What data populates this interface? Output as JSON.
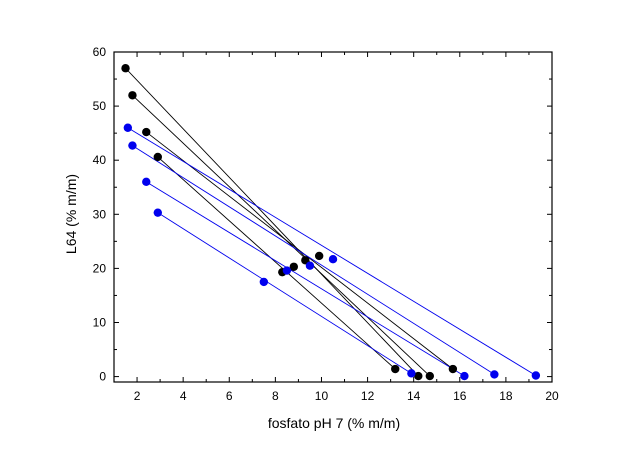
{
  "chart_data": {
    "type": "scatter",
    "xlabel": "fosfato pH 7 (% m/m)",
    "ylabel": "L64 (% m/m)",
    "xlim": [
      1,
      20
    ],
    "ylim": [
      -1,
      60
    ],
    "xticks": [
      2,
      4,
      6,
      8,
      10,
      12,
      14,
      16,
      18,
      20
    ],
    "yticks": [
      0,
      10,
      20,
      30,
      40,
      50,
      60
    ],
    "xtick_labels": [
      "2",
      "4",
      "6",
      "8",
      "10",
      "12",
      "14",
      "16",
      "18",
      "20"
    ],
    "ytick_labels": [
      "0",
      "10",
      "20",
      "30",
      "40",
      "50",
      "60"
    ],
    "grid": false,
    "series": [
      {
        "color": "#000000",
        "tie_lines": [
          {
            "top": [
              1.5,
              57.0
            ],
            "mid": [
              9.9,
              22.3
            ],
            "bottom": [
              14.2,
              0.1
            ]
          },
          {
            "top": [
              1.8,
              52.0
            ],
            "mid": [
              9.3,
              21.5
            ],
            "bottom": [
              14.7,
              0.1
            ]
          },
          {
            "top": [
              2.4,
              45.2
            ],
            "mid": [
              8.8,
              20.3
            ],
            "bottom": [
              15.7,
              1.4
            ]
          },
          {
            "top": [
              2.9,
              40.6
            ],
            "mid": [
              8.3,
              19.3
            ],
            "bottom": [
              13.2,
              1.4
            ]
          }
        ]
      },
      {
        "color": "#0000ee",
        "tie_lines": [
          {
            "top": [
              1.6,
              46.0
            ],
            "mid": [
              10.5,
              21.7
            ],
            "bottom": [
              19.3,
              0.2
            ]
          },
          {
            "top": [
              1.8,
              42.7
            ],
            "mid": [
              9.5,
              20.5
            ],
            "bottom": [
              17.5,
              0.4
            ]
          },
          {
            "top": [
              2.4,
              36.0
            ],
            "mid": [
              8.5,
              19.6
            ],
            "bottom": [
              16.2,
              0.1
            ]
          },
          {
            "top": [
              2.9,
              30.3
            ],
            "mid": [
              7.5,
              17.5
            ],
            "bottom": [
              13.9,
              0.6
            ]
          }
        ]
      }
    ]
  }
}
